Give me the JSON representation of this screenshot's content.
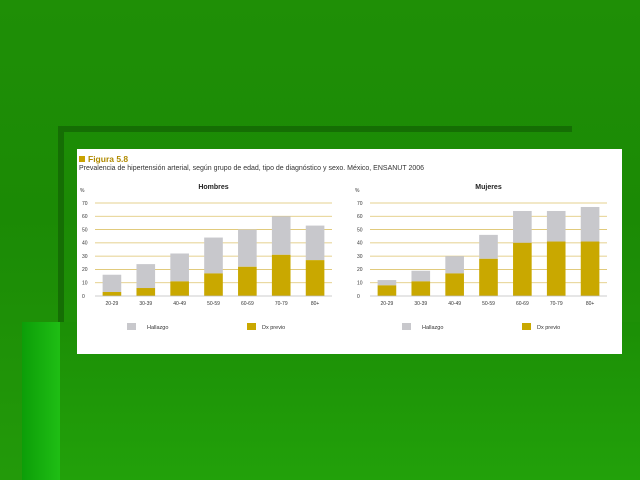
{
  "figure": {
    "label": "Figura 5.8",
    "caption": "Prevalencia de hipertensión arterial, según grupo de edad, tipo de diagnóstico y sexo. México, ENSANUT 2006"
  },
  "colors": {
    "hallazgo": "#c8c8cc",
    "dx_previo": "#c9a800",
    "gridline": "#ddc26a"
  },
  "chart_data": [
    {
      "type": "bar",
      "stacked": true,
      "title": "Hombres",
      "ylabel": "%",
      "ylim": [
        0,
        70
      ],
      "yticks": [
        0,
        10,
        20,
        30,
        40,
        50,
        60,
        70
      ],
      "categories": [
        "20-29",
        "30-39",
        "40-49",
        "50-59",
        "60-69",
        "70-79",
        "80+"
      ],
      "series": [
        {
          "name": "Dx previo",
          "values": [
            3,
            6,
            11,
            17,
            22,
            31,
            27
          ]
        },
        {
          "name": "Hallazgo",
          "values": [
            13,
            18,
            21,
            27,
            28,
            29,
            26
          ]
        }
      ],
      "legend": "bottom"
    },
    {
      "type": "bar",
      "stacked": true,
      "title": "Mujeres",
      "ylabel": "%",
      "ylim": [
        0,
        70
      ],
      "yticks": [
        0,
        10,
        20,
        30,
        40,
        50,
        60,
        70
      ],
      "categories": [
        "20-29",
        "30-39",
        "40-49",
        "50-59",
        "60-69",
        "70-79",
        "80+"
      ],
      "series": [
        {
          "name": "Dx previo",
          "values": [
            8,
            11,
            17,
            28,
            40,
            41,
            41
          ]
        },
        {
          "name": "Hallazgo",
          "values": [
            4,
            8,
            13,
            18,
            24,
            23,
            26
          ]
        }
      ],
      "legend": "bottom"
    }
  ]
}
